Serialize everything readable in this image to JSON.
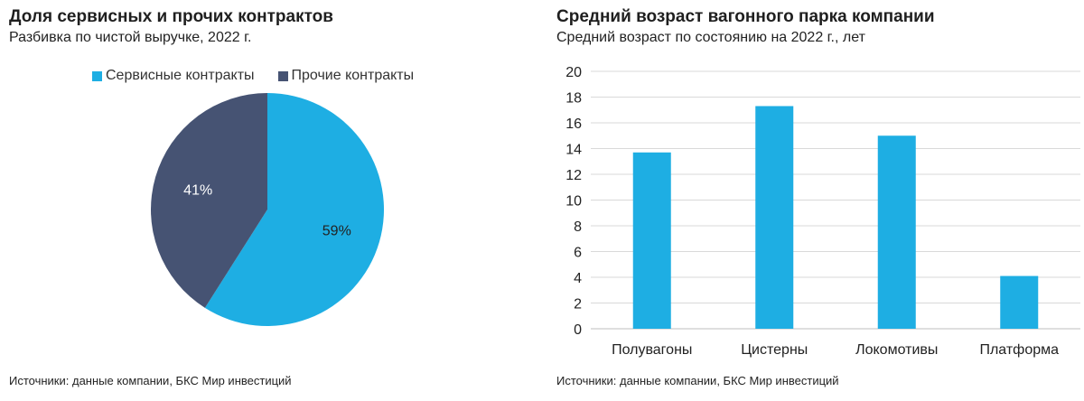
{
  "colors": {
    "service": "#1eaee3",
    "other": "#465373",
    "bar": "#1eaee3",
    "grid": "#d9d9d9",
    "axis_text": "#222222"
  },
  "left": {
    "title": "Доля сервисных и прочих контрактов",
    "subtitle": "Разбивка по чистой выручке, 2022 г.",
    "source": "Источники: данные компании, БКС Мир инвестиций"
  },
  "right": {
    "title": "Средний возраст вагонного парка компании",
    "subtitle": "Средний возраст по состоянию на 2022 г., лет",
    "source": "Источники: данные компании, БКС Мир инвестиций"
  },
  "chart_data": [
    {
      "type": "pie",
      "title": "Доля сервисных и прочих контрактов",
      "subtitle": "Разбивка по чистой выручке, 2022 г.",
      "legend_position": "top",
      "slices": [
        {
          "name": "Сервисные контракты",
          "value": 59,
          "label": "59%",
          "color": "#1eaee3"
        },
        {
          "name": "Прочие контракты",
          "value": 41,
          "label": "41%",
          "color": "#465373"
        }
      ]
    },
    {
      "type": "bar",
      "title": "Средний возраст вагонного парка компании",
      "subtitle": "Средний возраст по состоянию на 2022 г., лет",
      "categories": [
        "Полувагоны",
        "Цистерны",
        "Локомотивы",
        "Платформа"
      ],
      "values": [
        13.7,
        17.3,
        15.0,
        4.1
      ],
      "ylim": [
        0,
        20
      ],
      "yticks": [
        0,
        2,
        4,
        6,
        8,
        10,
        12,
        14,
        16,
        18,
        20
      ],
      "grid": true,
      "xlabel": "",
      "ylabel": ""
    }
  ]
}
